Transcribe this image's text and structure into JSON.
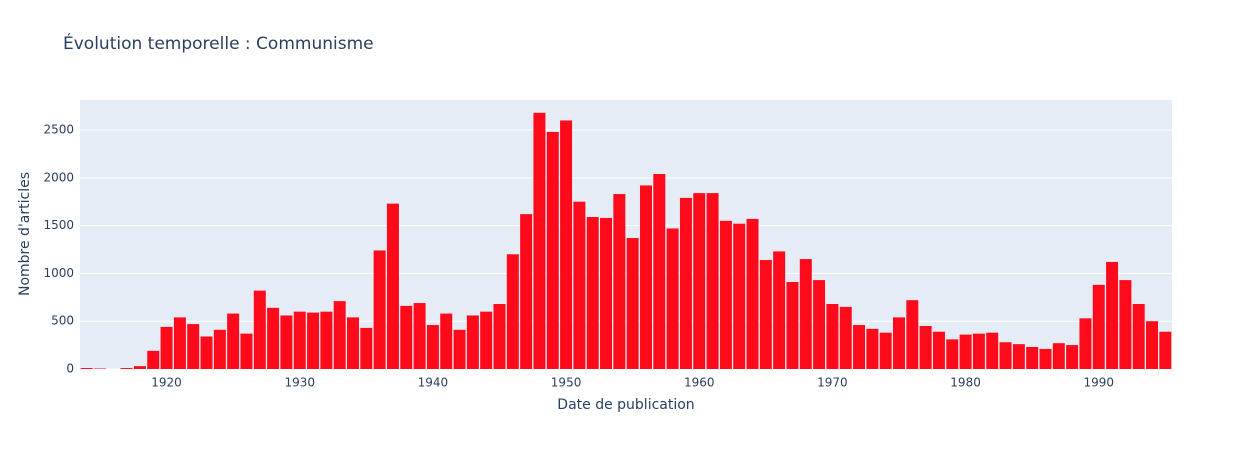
{
  "chart_data": {
    "type": "bar",
    "title": "Évolution temporelle : Communisme",
    "x_label": "Date de publication",
    "y_label": "Nombre d'articles",
    "x": [
      1914,
      1915,
      1916,
      1917,
      1918,
      1919,
      1920,
      1921,
      1922,
      1923,
      1924,
      1925,
      1926,
      1927,
      1928,
      1929,
      1930,
      1931,
      1932,
      1933,
      1934,
      1935,
      1936,
      1937,
      1938,
      1939,
      1940,
      1941,
      1942,
      1943,
      1944,
      1945,
      1946,
      1947,
      1948,
      1949,
      1950,
      1951,
      1952,
      1953,
      1954,
      1955,
      1956,
      1957,
      1958,
      1959,
      1960,
      1961,
      1962,
      1963,
      1964,
      1965,
      1966,
      1967,
      1968,
      1969,
      1970,
      1971,
      1972,
      1973,
      1974,
      1975,
      1976,
      1977,
      1978,
      1979,
      1980,
      1981,
      1982,
      1983,
      1984,
      1985,
      1986,
      1987,
      1988,
      1989,
      1990,
      1991,
      1992,
      1993,
      1994,
      1995
    ],
    "values": [
      10,
      5,
      0,
      10,
      30,
      190,
      440,
      540,
      470,
      340,
      410,
      580,
      370,
      820,
      640,
      560,
      600,
      590,
      600,
      710,
      540,
      430,
      1240,
      1730,
      660,
      690,
      460,
      580,
      410,
      560,
      600,
      680,
      1200,
      1620,
      2680,
      2480,
      2600,
      1750,
      1590,
      1580,
      1830,
      1370,
      1920,
      2040,
      1470,
      1790,
      1840,
      1840,
      1550,
      1520,
      1570,
      1140,
      1230,
      910,
      1150,
      930,
      680,
      650,
      460,
      420,
      380,
      540,
      720,
      450,
      390,
      310,
      360,
      370,
      380,
      280,
      260,
      230,
      210,
      270,
      250,
      530,
      880,
      1120,
      930,
      680,
      500,
      390
    ],
    "color": "#ff0a1a",
    "xlim": [
      1913.5,
      1995.5
    ],
    "xticks": [
      1920,
      1930,
      1940,
      1950,
      1960,
      1970,
      1980,
      1990
    ],
    "ylim": [
      0,
      2814
    ],
    "yticks": [
      0,
      500,
      1000,
      1500,
      2000,
      2500
    ],
    "grid": true
  }
}
